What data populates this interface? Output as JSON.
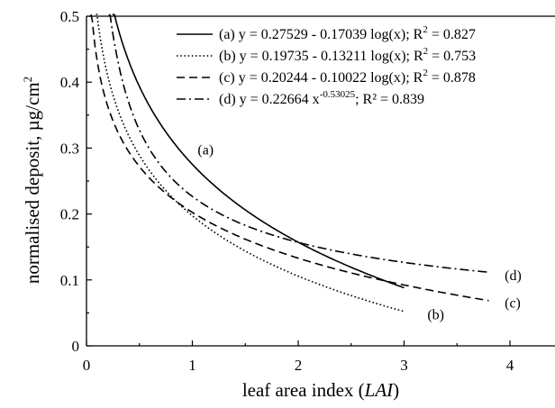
{
  "chart_data": {
    "type": "line",
    "xlabel": "leaf area index (LAI)",
    "xlabel_parts": [
      "leaf area index (",
      "LAI",
      ")"
    ],
    "ylabel": "normalised deposit, µg/cm²",
    "ylabel_main": "normalised deposit, µg/cm",
    "ylabel_sup": "2",
    "xlim": [
      0,
      4.3
    ],
    "ylim": [
      0,
      0.5
    ],
    "xticks": [
      0,
      1,
      2,
      3,
      4
    ],
    "xtick_labels": [
      "0",
      "1",
      "2",
      "3",
      "4"
    ],
    "yticks": [
      0,
      0.1,
      0.2,
      0.3,
      0.4,
      0.5
    ],
    "ytick_labels": [
      "0",
      "0.1",
      "0.2",
      "0.3",
      "0.4",
      "0.5"
    ],
    "grid": false,
    "legend_position": "top-right",
    "series": [
      {
        "label": "(a)",
        "legend": {
          "pre": "(a) y = 0.27529 - 0.17039 log(x); R",
          "sup": "2",
          "post": " = 0.827"
        },
        "model": "log",
        "a": 0.27529,
        "b": -0.17039,
        "x_range": [
          0.1,
          3.0
        ],
        "dash": "solid",
        "curve_label_at": [
          1.05,
          0.29
        ]
      },
      {
        "label": "(b)",
        "legend": {
          "pre": "(b) y = 0.19735 - 0.13211 log(x); R",
          "sup": "2",
          "post": " = 0.753"
        },
        "model": "log",
        "a": 0.19735,
        "b": -0.13211,
        "x_range": [
          0.06,
          3.0
        ],
        "dash": "dotted",
        "curve_label_at": [
          3.22,
          0.04
        ]
      },
      {
        "label": "(c)",
        "legend": {
          "pre": "(c) y = 0.20244 - 0.10022 log(x); R",
          "sup": "2",
          "post": " = 0.878"
        },
        "model": "log",
        "a": 0.20244,
        "b": -0.10022,
        "x_range": [
          0.03,
          3.8
        ],
        "dash": "dashed",
        "curve_label_at": [
          3.95,
          0.058
        ]
      },
      {
        "label": "(d)",
        "legend": {
          "pre": "(d) y = 0.22664 x",
          "sup": "-0.53025",
          "post": "; R² = 0.839"
        },
        "model": "power",
        "a": 0.22664,
        "b": -0.53025,
        "x_range": [
          0.2,
          3.8
        ],
        "dash": "dashdot",
        "curve_label_at": [
          3.95,
          0.1
        ]
      }
    ]
  }
}
